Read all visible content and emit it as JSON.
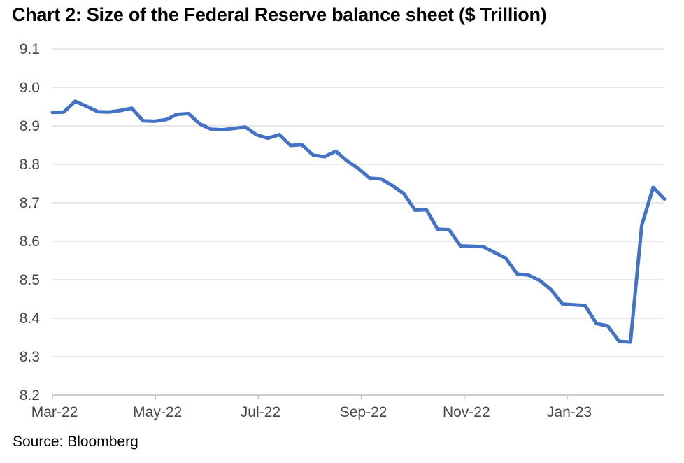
{
  "title": "Chart 2: Size of the Federal Reserve balance sheet ($ Trillion)",
  "source": "Source: Bloomberg",
  "chart_data": {
    "type": "line",
    "title": "Chart 2: Size of the Federal Reserve balance sheet ($ Trillion)",
    "xlabel": "",
    "ylabel": "$ Trillion",
    "ylim": [
      8.2,
      9.1
    ],
    "y_ticks": [
      9.1,
      9.0,
      8.9,
      8.8,
      8.7,
      8.6,
      8.5,
      8.4,
      8.3,
      8.2
    ],
    "x_tick_labels": [
      "Mar-22",
      "May-22",
      "Jul-22",
      "Sep-22",
      "Nov-22",
      "Jan-23"
    ],
    "x_range_note": "weekly observations from Mar-22 through late Mar-23",
    "grid": "horizontal",
    "legend": "none",
    "series": [
      {
        "name": "Federal Reserve balance sheet ($ Trillion)",
        "values": [
          8.935,
          8.936,
          8.964,
          8.951,
          8.937,
          8.936,
          8.94,
          8.946,
          8.913,
          8.912,
          8.916,
          8.93,
          8.932,
          8.905,
          8.891,
          8.89,
          8.893,
          8.897,
          8.877,
          8.868,
          8.877,
          8.849,
          8.851,
          8.824,
          8.82,
          8.834,
          8.809,
          8.789,
          8.764,
          8.762,
          8.745,
          8.724,
          8.681,
          8.682,
          8.631,
          8.63,
          8.588,
          8.587,
          8.586,
          8.571,
          8.556,
          8.515,
          8.512,
          8.498,
          8.474,
          8.437,
          8.435,
          8.433,
          8.386,
          8.38,
          8.34,
          8.338,
          8.642,
          8.74,
          8.71
        ]
      }
    ],
    "line_color": "#4472C4",
    "gridline_color": "#D9D9D9",
    "axis_color": "#BFBFBF",
    "tick_label_color": "#474747",
    "title_color": "#000000"
  }
}
